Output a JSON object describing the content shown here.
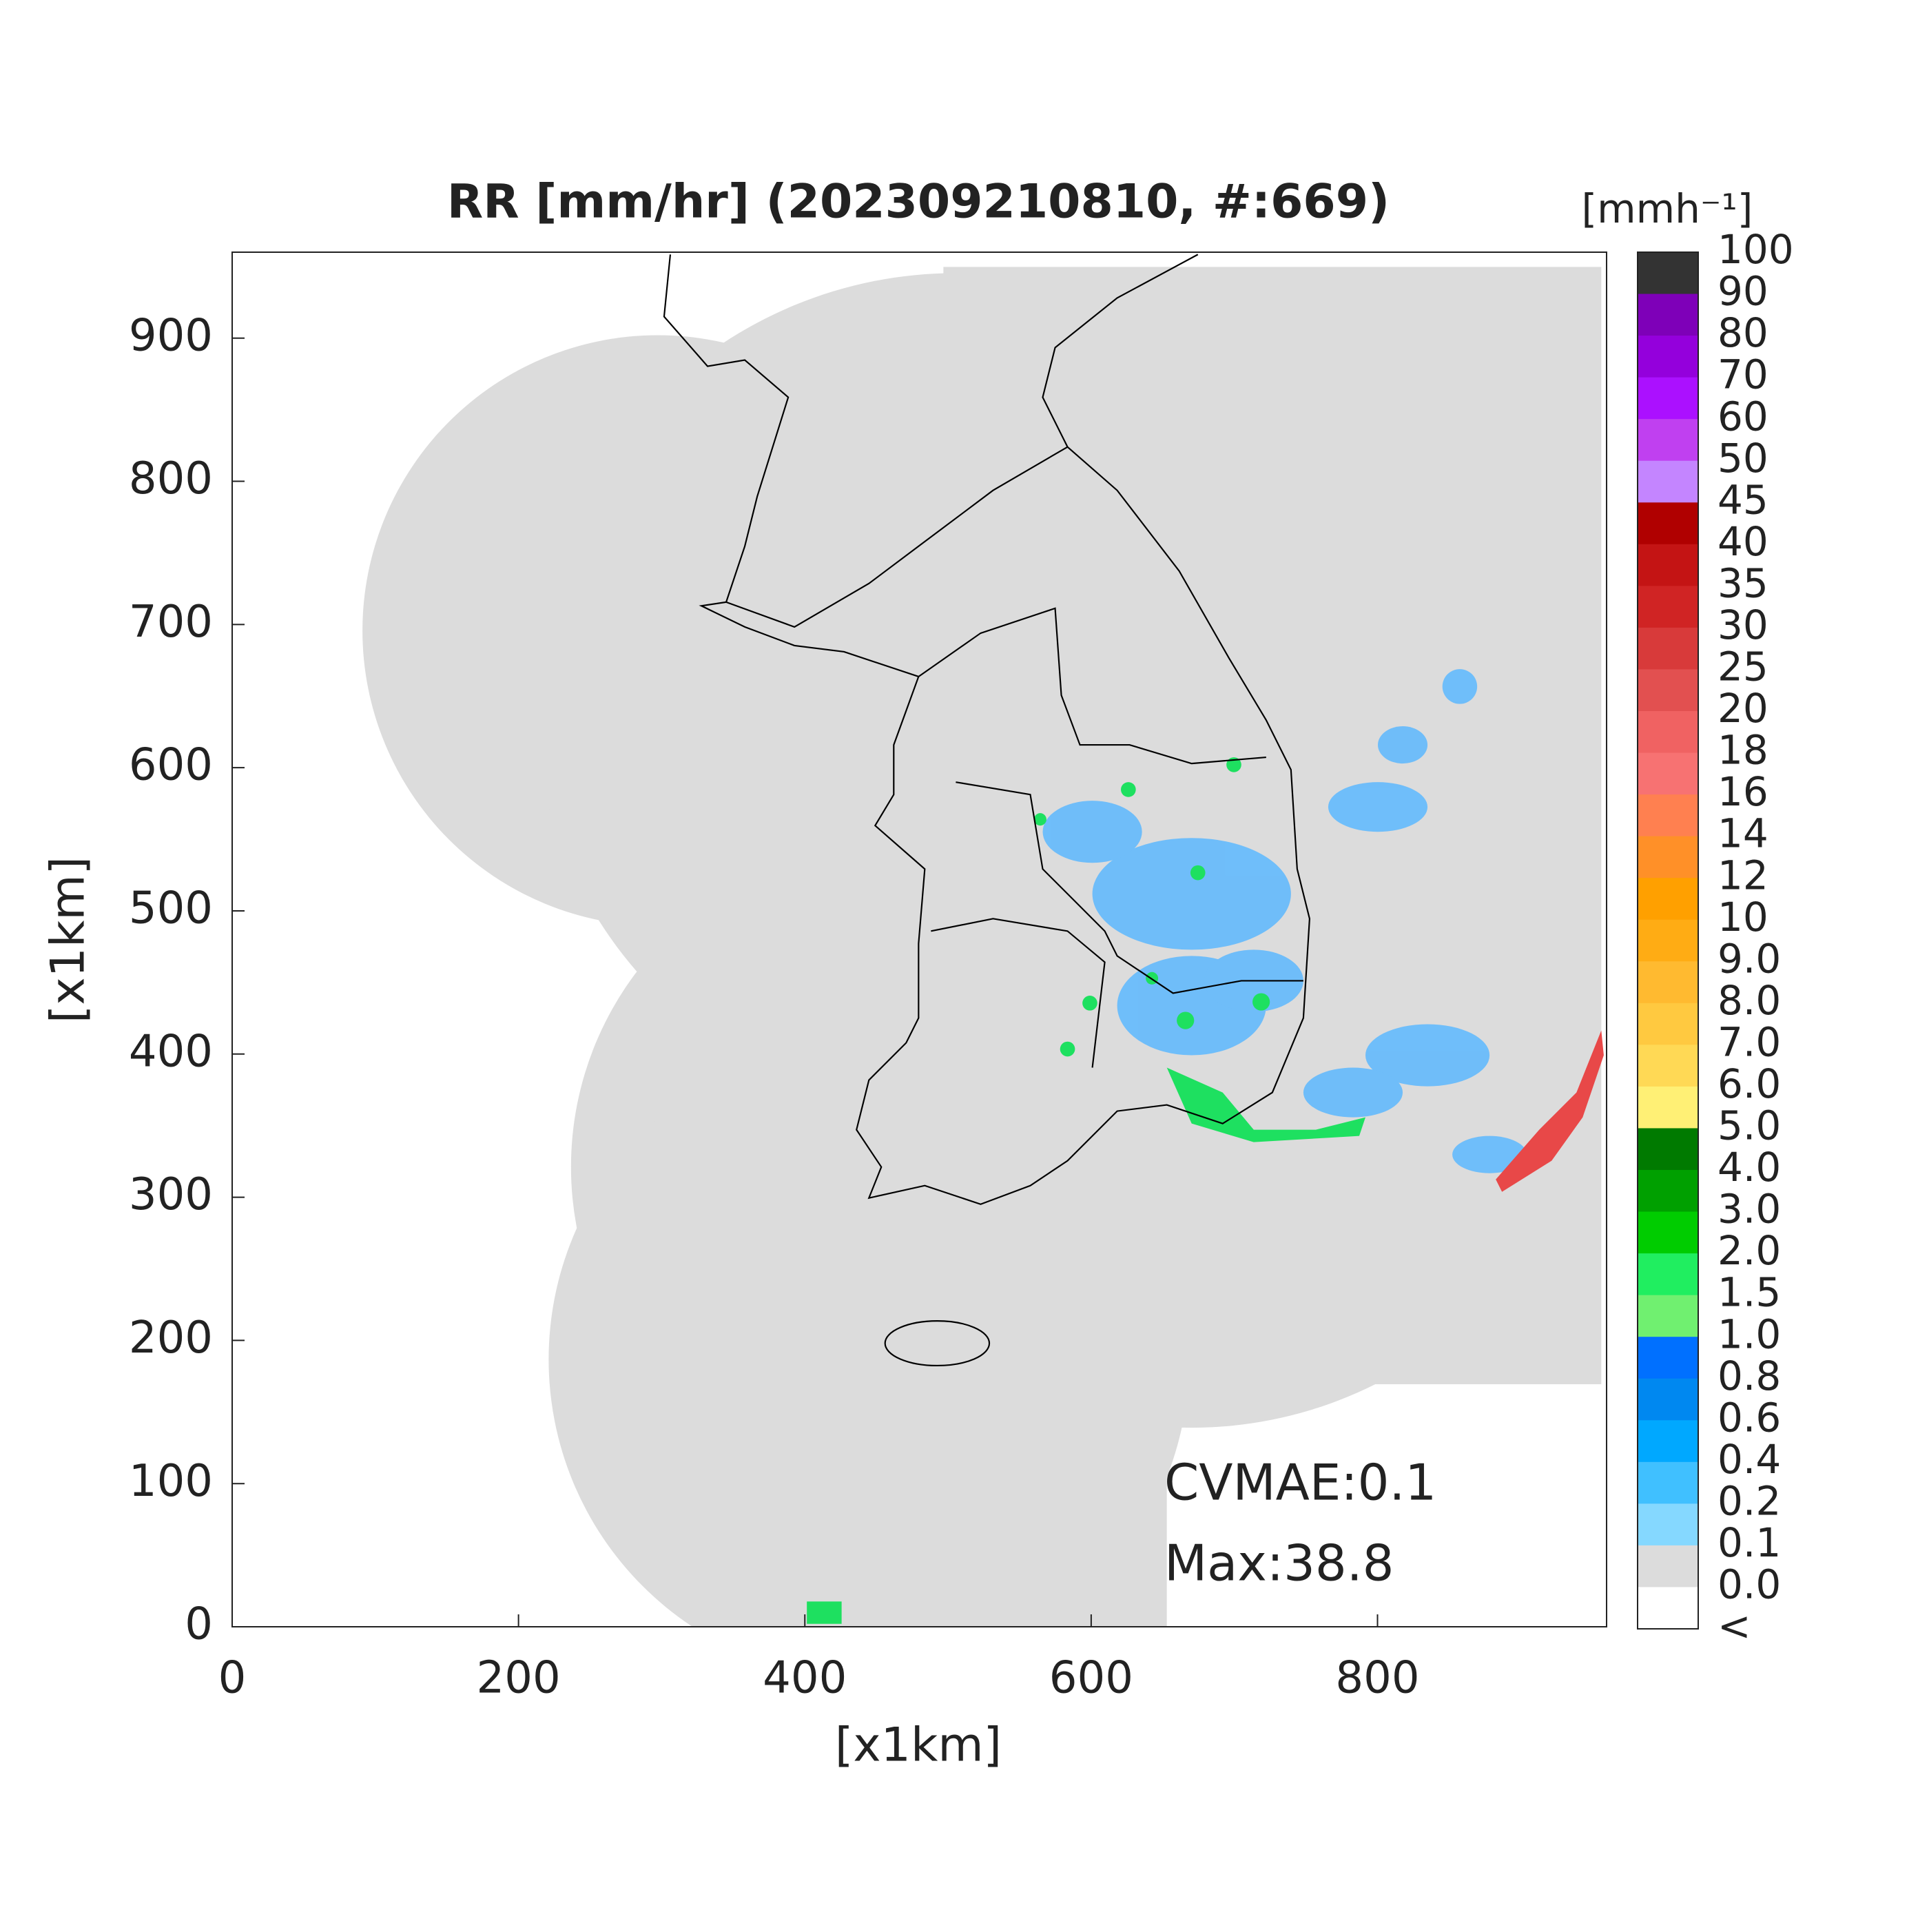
{
  "map": {
    "title": "RR [mm/hr] (202309210810, #:669)",
    "x_label": "[x1km]",
    "y_label": "[x1km]",
    "xlim": [
      0,
      960
    ],
    "ylim": [
      0,
      960
    ],
    "xticks": [
      0,
      200,
      400,
      600,
      800
    ],
    "yticks": [
      0,
      100,
      200,
      300,
      400,
      500,
      600,
      700,
      800,
      900
    ],
    "annotations": [
      "CVMAE:0.1",
      "Max:38.8"
    ],
    "colorbar": {
      "unit": "[mmh⁻¹]",
      "labels": [
        "100",
        "90",
        "80",
        "70",
        "60",
        "50",
        "45",
        "40",
        "35",
        "30",
        "25",
        "20",
        "18",
        "16",
        "14",
        "12",
        "10",
        "9.0",
        "8.0",
        "7.0",
        "6.0",
        "5.0",
        "4.0",
        "3.0",
        "2.0",
        "1.5",
        "1.0",
        "0.8",
        "0.6",
        "0.4",
        "0.2",
        "0.1",
        "0.0",
        "<"
      ],
      "colors": [
        "#333333",
        "#7e00b8",
        "#9400dc",
        "#ab10ff",
        "#c040f0",
        "#c485ff",
        "#b00000",
        "#c41414",
        "#d02424",
        "#d83a3a",
        "#e25050",
        "#f06262",
        "#f77272",
        "#ff8050",
        "#ff9028",
        "#ffa000",
        "#ffac14",
        "#ffba30",
        "#ffc940",
        "#ffd955",
        "#fff075",
        "#007a00",
        "#00a000",
        "#00cc00",
        "#20ee60",
        "#70f070",
        "#0070ff",
        "#0088f0",
        "#00a8ff",
        "#40c0ff",
        "#85d8ff",
        "#dcdcdc",
        "#ffffff"
      ]
    }
  }
}
